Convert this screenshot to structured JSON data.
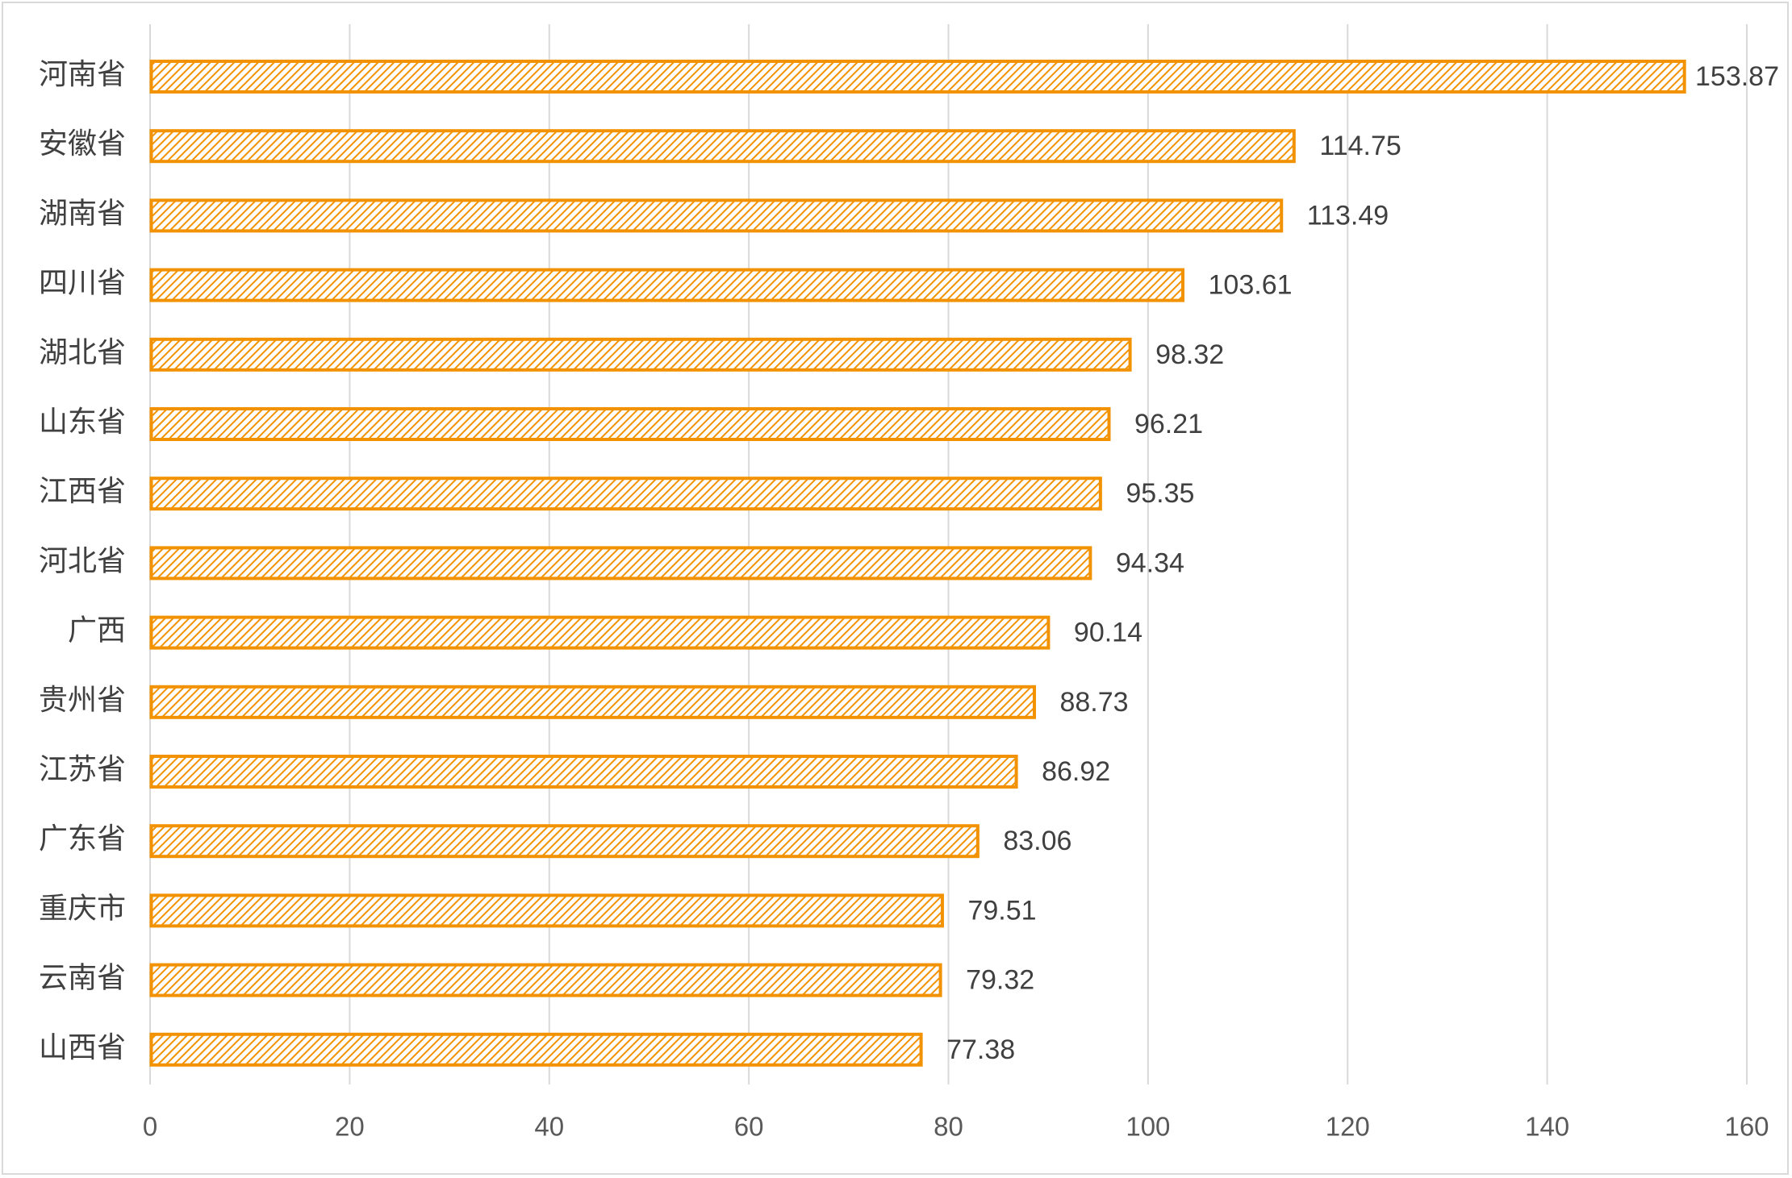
{
  "chart_data": {
    "type": "bar",
    "orientation": "horizontal",
    "categories": [
      "河南省",
      "安徽省",
      "湖南省",
      "四川省",
      "湖北省",
      "山东省",
      "江西省",
      "河北省",
      "广西",
      "贵州省",
      "江苏省",
      "广东省",
      "重庆市",
      "云南省",
      "山西省"
    ],
    "values": [
      153.87,
      114.75,
      113.49,
      103.61,
      98.32,
      96.21,
      95.35,
      94.34,
      90.14,
      88.73,
      86.92,
      83.06,
      79.51,
      79.32,
      77.38
    ],
    "data_labels": [
      "153.87",
      "114.75",
      "113.49",
      "103.61",
      "98.32",
      "96.21",
      "95.35",
      "94.34",
      "90.14",
      "88.73",
      "86.92",
      "83.06",
      "79.51",
      "79.32",
      "77.38"
    ],
    "x_ticks": [
      "0",
      "20",
      "40",
      "60",
      "80",
      "100",
      "120",
      "140",
      "160"
    ],
    "xlim": [
      0,
      160
    ],
    "grid": "vertical",
    "legend": "none",
    "bar_fill": "hatched",
    "colors": {
      "bar_stroke": "#f39200",
      "bar_hatch": "#f39200",
      "bar_background": "#ffffff",
      "grid": "#d9d9d9",
      "text": "#404040"
    }
  }
}
